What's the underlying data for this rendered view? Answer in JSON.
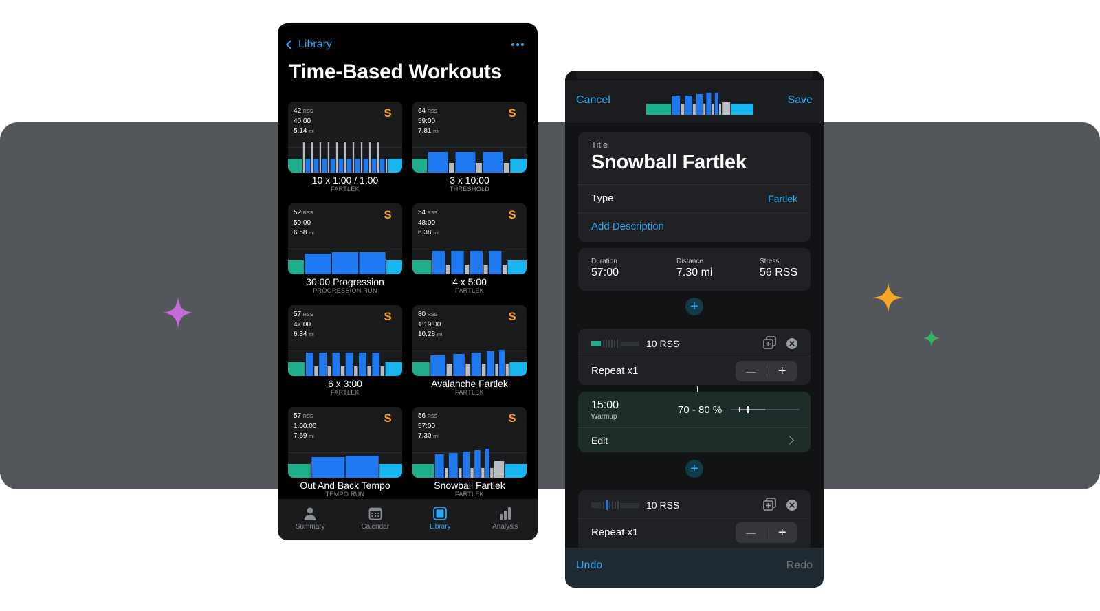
{
  "colors": {
    "accent": "#2aa8f5",
    "badge": "#ff9f1a",
    "warmup": "#1fae8c",
    "work": "#1e78f0",
    "recovery": "#b8bcc2",
    "cooldown": "#18b6f0"
  },
  "left": {
    "back_label": "Library",
    "more_icon": "ellipsis-icon",
    "title": "Time-Based Workouts",
    "cards": [
      {
        "rss": "42",
        "rss_unit": "RSS",
        "time": "40:00",
        "dist": "5.14",
        "dist_unit": "mi",
        "name": "10 x 1:00 / 1:00",
        "type": "FARTLEK",
        "badge": "S"
      },
      {
        "rss": "64",
        "rss_unit": "RSS",
        "time": "59:00",
        "dist": "7.81",
        "dist_unit": "mi",
        "name": "3 x 10:00",
        "type": "THRESHOLD",
        "badge": "S"
      },
      {
        "rss": "52",
        "rss_unit": "RSS",
        "time": "50:00",
        "dist": "6.58",
        "dist_unit": "mi",
        "name": "30:00 Progression",
        "type": "PROGRESSION RUN",
        "badge": "S"
      },
      {
        "rss": "54",
        "rss_unit": "RSS",
        "time": "48:00",
        "dist": "6.38",
        "dist_unit": "mi",
        "name": "4 x 5:00",
        "type": "FARTLEK",
        "badge": "S"
      },
      {
        "rss": "57",
        "rss_unit": "RSS",
        "time": "47:00",
        "dist": "6.34",
        "dist_unit": "mi",
        "name": "6 x 3:00",
        "type": "FARTLEK",
        "badge": "S"
      },
      {
        "rss": "80",
        "rss_unit": "RSS",
        "time": "1:19:00",
        "dist": "10.28",
        "dist_unit": "mi",
        "name": "Avalanche Fartlek",
        "type": "FARTLEK",
        "badge": "S"
      },
      {
        "rss": "57",
        "rss_unit": "RSS",
        "time": "1:00:00",
        "dist": "7.69",
        "dist_unit": "mi",
        "name": "Out And Back Tempo",
        "type": "TEMPO RUN",
        "badge": "S"
      },
      {
        "rss": "56",
        "rss_unit": "RSS",
        "time": "57:00",
        "dist": "7.30",
        "dist_unit": "mi",
        "name": "Snowball Fartlek",
        "type": "FARTLEK",
        "badge": "S"
      }
    ],
    "tabs": [
      {
        "label": "Summary",
        "icon": "person-icon"
      },
      {
        "label": "Calendar",
        "icon": "calendar-icon"
      },
      {
        "label": "Library",
        "icon": "library-icon",
        "active": true
      },
      {
        "label": "Analysis",
        "icon": "bar-chart-icon"
      }
    ]
  },
  "right": {
    "cancel": "Cancel",
    "save": "Save",
    "title_label": "Title",
    "title_value": "Snowball Fartlek",
    "type_label": "Type",
    "type_value": "Fartlek",
    "add_description": "Add Description",
    "stats": [
      {
        "label": "Duration",
        "value": "57:00"
      },
      {
        "label": "Distance",
        "value": "7.30 mi"
      },
      {
        "label": "Stress",
        "value": "56 RSS"
      }
    ],
    "block1": {
      "rss": "10 RSS",
      "repeat": "Repeat x1"
    },
    "step": {
      "time": "15:00",
      "name": "Warmup",
      "intensity": "70 - 80 %",
      "edit": "Edit"
    },
    "block2": {
      "rss": "10 RSS",
      "repeat": "Repeat x1"
    },
    "stepper_minus": "—",
    "stepper_plus": "+",
    "add_symbol": "+",
    "undo": "Undo",
    "redo": "Redo"
  }
}
